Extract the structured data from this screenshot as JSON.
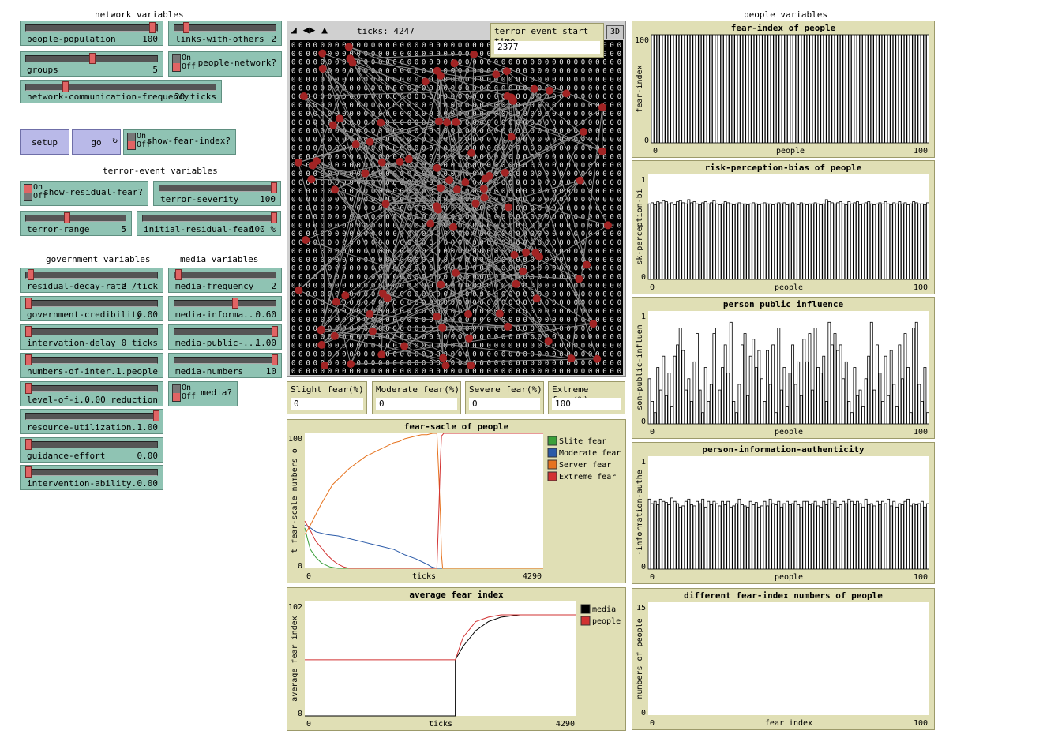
{
  "sections": {
    "network": "network variables",
    "terror": "terror-event variables",
    "government": "government variables",
    "media": "media variables",
    "people": "people variables"
  },
  "sliders": [
    {
      "name": "people-population",
      "value": "100",
      "level": 0.97
    },
    {
      "name": "links-with-others",
      "value": "2",
      "level": 0.1
    },
    {
      "name": "groups",
      "value": "5",
      "level": 0.5
    },
    {
      "name": "network-communication-frequency",
      "value": "20 ticks",
      "level": 0.2
    },
    {
      "name": "terror-severity",
      "value": "100",
      "level": 1.0
    },
    {
      "name": "terror-range",
      "value": "5",
      "level": 0.4
    },
    {
      "name": "initial-residual-fear",
      "value": "100 %",
      "level": 1.0
    },
    {
      "name": "residual-decay-rate",
      "value": "2 /tick",
      "level": 0.02
    },
    {
      "name": "government-credibility",
      "value": "0.00",
      "level": 0.0
    },
    {
      "name": "intervation-delay",
      "value": "0 ticks",
      "level": 0.0
    },
    {
      "name": "numbers-of-inter...",
      "value": "1 people",
      "level": 0.0
    },
    {
      "name": "level-of-i...",
      "value": "0.00 reduction",
      "level": 0.0
    },
    {
      "name": "resource-utilization...",
      "value": "1.00",
      "level": 1.0
    },
    {
      "name": "guidance-effort",
      "value": "0.00",
      "level": 0.0
    },
    {
      "name": "intervention-ability...",
      "value": "0.00",
      "level": 0.0
    },
    {
      "name": "media-frequency",
      "value": "2",
      "level": 0.02
    },
    {
      "name": "media-informa...",
      "value": "0.60",
      "level": 0.6
    },
    {
      "name": "media-public-...",
      "value": "1.00",
      "level": 1.0
    },
    {
      "name": "media-numbers",
      "value": "10",
      "level": 1.0
    }
  ],
  "switches": [
    {
      "name": "people-network?",
      "on": "On",
      "off": "Off",
      "state": "off"
    },
    {
      "name": "show-fear-index?",
      "on": "On",
      "off": "Off",
      "state": "off"
    },
    {
      "name": "show-residual-fear?",
      "on": "On",
      "off": "Off",
      "state": "on"
    },
    {
      "name": "media?",
      "on": "On",
      "off": "Off",
      "state": "off"
    }
  ],
  "buttons": {
    "setup": "setup",
    "go": "go"
  },
  "view": {
    "ticks_label": "ticks: 4247",
    "threed": "3D",
    "grid_char": "0",
    "node_color": "#a22424",
    "link_color": "#8a8a8a"
  },
  "monitors": [
    {
      "name": "terror event start time",
      "value": "2377"
    },
    {
      "name": "Slight fear(%)",
      "value": "0"
    },
    {
      "name": "Moderate fear(%)",
      "value": "0"
    },
    {
      "name": "Severe fear(%)",
      "value": "0"
    },
    {
      "name": "Extreme fear(%)",
      "value": "100"
    }
  ],
  "plots": {
    "fear_index": {
      "title": "fear-index of people",
      "ylabel": "fear-index",
      "xlabel": "people",
      "xmin": "0",
      "xmax": "100",
      "ymin": "0",
      "ymax": "100"
    },
    "risk": {
      "title": "risk-perception-bias of people",
      "ylabel": "sk-perception-bi",
      "xlabel": "people",
      "xmin": "0",
      "xmax": "100",
      "ymin": "0",
      "ymax": "1"
    },
    "influence": {
      "title": "person public influence",
      "ylabel": "son-public-influen",
      "xlabel": "people",
      "xmin": "0",
      "xmax": "100",
      "ymin": "0",
      "ymax": "1"
    },
    "authenticity": {
      "title": "person-information-authenticity",
      "ylabel": "-information-authe",
      "xlabel": "people",
      "xmin": "0",
      "xmax": "100",
      "ymin": "0",
      "ymax": "1"
    },
    "diff": {
      "title": "different fear-index numbers of people",
      "ylabel": "numbers of people",
      "xlabel": "fear index",
      "xmin": "0",
      "xmax": "100",
      "ymin": "0",
      "ymax": "15"
    },
    "scale": {
      "title": "fear-sacle of people",
      "ylabel": "t fear-scale numbers o",
      "xlabel": "ticks",
      "xmin": "0",
      "xmax": "4290",
      "ymin": "0",
      "ymax": "100",
      "legend": [
        "Slite fear",
        "Moderate fear",
        "Server fear",
        "Extreme fear"
      ],
      "colors": [
        "#3aa03a",
        "#2a5aa8",
        "#e6731e",
        "#d23232"
      ]
    },
    "avg": {
      "title": "average fear index",
      "ylabel": "average fear index",
      "xlabel": "ticks",
      "xmin": "0",
      "xmax": "4290",
      "ymin": "0",
      "ymax": "102",
      "legend": [
        "media",
        "people"
      ],
      "colors": [
        "#000000",
        "#d23232"
      ]
    }
  },
  "chart_data": [
    {
      "type": "bar",
      "title": "fear-index of people",
      "xlabel": "people",
      "ylabel": "fear-index",
      "xlim": [
        0,
        100
      ],
      "ylim": [
        0,
        100
      ],
      "values": "all 100 people at 100"
    },
    {
      "type": "bar",
      "title": "risk-perception-bias of people",
      "xlabel": "people",
      "ylabel": "sk-perception-bi",
      "xlim": [
        0,
        100
      ],
      "ylim": [
        0,
        1
      ],
      "values": [
        0.72,
        0.73,
        0.71,
        0.74,
        0.73,
        0.75,
        0.74,
        0.72,
        0.73,
        0.71,
        0.74,
        0.75,
        0.73,
        0.72,
        0.76,
        0.73,
        0.74,
        0.72,
        0.71,
        0.73,
        0.74,
        0.72,
        0.73,
        0.75,
        0.72,
        0.71,
        0.72,
        0.74,
        0.73,
        0.72,
        0.71,
        0.72,
        0.73,
        0.72,
        0.72,
        0.71,
        0.72,
        0.73,
        0.72,
        0.71,
        0.72,
        0.73,
        0.72,
        0.72,
        0.71,
        0.72,
        0.73,
        0.72,
        0.73,
        0.71,
        0.72,
        0.73,
        0.72,
        0.71,
        0.73,
        0.72,
        0.71,
        0.72,
        0.72,
        0.73,
        0.72,
        0.71,
        0.72,
        0.76,
        0.74,
        0.73,
        0.72,
        0.73,
        0.74,
        0.72,
        0.71,
        0.74,
        0.72,
        0.73,
        0.74,
        0.71,
        0.72,
        0.73,
        0.74,
        0.72,
        0.71,
        0.72,
        0.73,
        0.72,
        0.74,
        0.72,
        0.71,
        0.73,
        0.72,
        0.74,
        0.72,
        0.73,
        0.71,
        0.72,
        0.74,
        0.73,
        0.72,
        0.72,
        0.71,
        0.73
      ]
    },
    {
      "type": "bar",
      "title": "person public influence",
      "xlabel": "people",
      "ylabel": "son-public-influen",
      "xlim": [
        0,
        100
      ],
      "ylim": [
        0,
        1
      ],
      "values": [
        0.4,
        0.2,
        0.1,
        0.5,
        0.3,
        0.6,
        0.25,
        0.45,
        0.15,
        0.6,
        0.7,
        0.85,
        0.65,
        0.3,
        0.4,
        0.2,
        0.55,
        0.8,
        0.3,
        0.1,
        0.5,
        0.2,
        0.35,
        0.8,
        0.85,
        0.3,
        0.5,
        0.7,
        0.45,
        0.9,
        0.2,
        0.1,
        0.35,
        0.7,
        0.8,
        0.25,
        0.6,
        0.75,
        0.5,
        0.65,
        0.4,
        0.2,
        0.65,
        0.35,
        0.7,
        0.1,
        0.85,
        0.3,
        0.5,
        0.15,
        0.45,
        0.7,
        0.35,
        0.55,
        0.25,
        0.75,
        0.55,
        0.8,
        0.3,
        0.85,
        0.5,
        0.45,
        0.6,
        0.2,
        0.9,
        0.7,
        0.8,
        0.65,
        0.7,
        0.4,
        0.55,
        0.2,
        0.1,
        0.5,
        0.25,
        0.3,
        0.15,
        0.4,
        0.6,
        0.9,
        0.3,
        0.7,
        0.45,
        0.2,
        0.6,
        0.25,
        0.65,
        0.35,
        0.15,
        0.7,
        0.4,
        0.8,
        0.5,
        0.1,
        0.85,
        0.9,
        0.35,
        0.2,
        0.5,
        0.1
      ]
    },
    {
      "type": "bar",
      "title": "person-information-authenticity",
      "xlabel": "people",
      "ylabel": "-information-authe",
      "xlim": [
        0,
        100
      ],
      "ylim": [
        0,
        1
      ],
      "values": [
        0.62,
        0.58,
        0.6,
        0.57,
        0.62,
        0.6,
        0.59,
        0.57,
        0.63,
        0.6,
        0.58,
        0.55,
        0.56,
        0.6,
        0.62,
        0.57,
        0.56,
        0.6,
        0.58,
        0.62,
        0.55,
        0.6,
        0.57,
        0.6,
        0.58,
        0.56,
        0.6,
        0.57,
        0.6,
        0.55,
        0.56,
        0.58,
        0.62,
        0.57,
        0.56,
        0.55,
        0.6,
        0.57,
        0.59,
        0.55,
        0.56,
        0.6,
        0.56,
        0.62,
        0.58,
        0.57,
        0.6,
        0.55,
        0.58,
        0.6,
        0.57,
        0.58,
        0.6,
        0.57,
        0.55,
        0.6,
        0.6,
        0.57,
        0.58,
        0.6,
        0.56,
        0.55,
        0.6,
        0.57,
        0.62,
        0.58,
        0.6,
        0.55,
        0.57,
        0.6,
        0.58,
        0.62,
        0.6,
        0.57,
        0.6,
        0.58,
        0.55,
        0.62,
        0.57,
        0.58,
        0.56,
        0.6,
        0.57,
        0.6,
        0.58,
        0.62,
        0.56,
        0.6,
        0.55,
        0.58,
        0.57,
        0.6,
        0.62,
        0.56,
        0.58,
        0.57,
        0.58,
        0.6,
        0.55,
        0.58
      ]
    },
    {
      "type": "bar",
      "title": "different fear-index numbers of people",
      "xlabel": "fear index",
      "ylabel": "numbers of people",
      "xlim": [
        0,
        100
      ],
      "ylim": [
        0,
        15
      ],
      "values": []
    },
    {
      "type": "line",
      "title": "fear-sacle of people",
      "xlabel": "ticks",
      "ylabel": "t fear-scale numbers o",
      "xlim": [
        0,
        4290
      ],
      "ylim": [
        0,
        100
      ],
      "series": [
        {
          "name": "Slite fear",
          "x": [
            0,
            60,
            100,
            200,
            300,
            450,
            600,
            4290
          ],
          "y": [
            30,
            20,
            14,
            8,
            4,
            1,
            0,
            0
          ]
        },
        {
          "name": "Moderate fear",
          "x": [
            0,
            100,
            200,
            400,
            600,
            800,
            1000,
            1200,
            1400,
            1600,
            1800,
            2000,
            2200,
            2280,
            2377,
            4290
          ],
          "y": [
            32,
            30,
            27,
            25,
            24,
            22,
            20,
            18,
            16,
            14,
            10,
            7,
            3,
            1,
            0,
            0
          ]
        },
        {
          "name": "Server fear",
          "x": [
            0,
            100,
            200,
            300,
            400,
            500,
            600,
            700,
            800,
            900,
            1000,
            1100,
            1200,
            1300,
            1400,
            1500,
            1600,
            1700,
            1800,
            1900,
            2000,
            2100,
            2200,
            2300,
            2377,
            2410,
            2440,
            2460,
            2480,
            4290
          ],
          "y": [
            25,
            32,
            40,
            48,
            55,
            62,
            66,
            70,
            74,
            77,
            80,
            83,
            85,
            87,
            89,
            91,
            93,
            94,
            96,
            97,
            98,
            99,
            99,
            100,
            100,
            70,
            40,
            10,
            0,
            0
          ]
        },
        {
          "name": "Extreme fear",
          "x": [
            0,
            100,
            200,
            300,
            400,
            500,
            600,
            700,
            800,
            900,
            1000,
            2370,
            2377,
            2410,
            2440,
            2460,
            2500,
            4290
          ],
          "y": [
            35,
            28,
            20,
            15,
            10,
            6,
            3,
            1,
            0,
            0,
            0,
            0,
            0,
            40,
            80,
            98,
            100,
            100
          ]
        }
      ]
    },
    {
      "type": "line",
      "title": "average fear index",
      "xlabel": "ticks",
      "ylabel": "average fear index",
      "xlim": [
        0,
        4290
      ],
      "ylim": [
        0,
        102
      ],
      "series": [
        {
          "name": "media",
          "x": [
            0,
            2377,
            2378,
            2500,
            2700,
            2900,
            3100,
            3400,
            3700,
            4290
          ],
          "y": [
            0,
            0,
            50,
            62,
            76,
            84,
            88,
            90,
            90,
            90
          ]
        },
        {
          "name": "people",
          "x": [
            0,
            2377,
            2378,
            2500,
            2700,
            2900,
            3100,
            3400,
            3700,
            4290
          ],
          "y": [
            50,
            50,
            50,
            70,
            84,
            88,
            90,
            90,
            90,
            90
          ]
        }
      ]
    }
  ]
}
